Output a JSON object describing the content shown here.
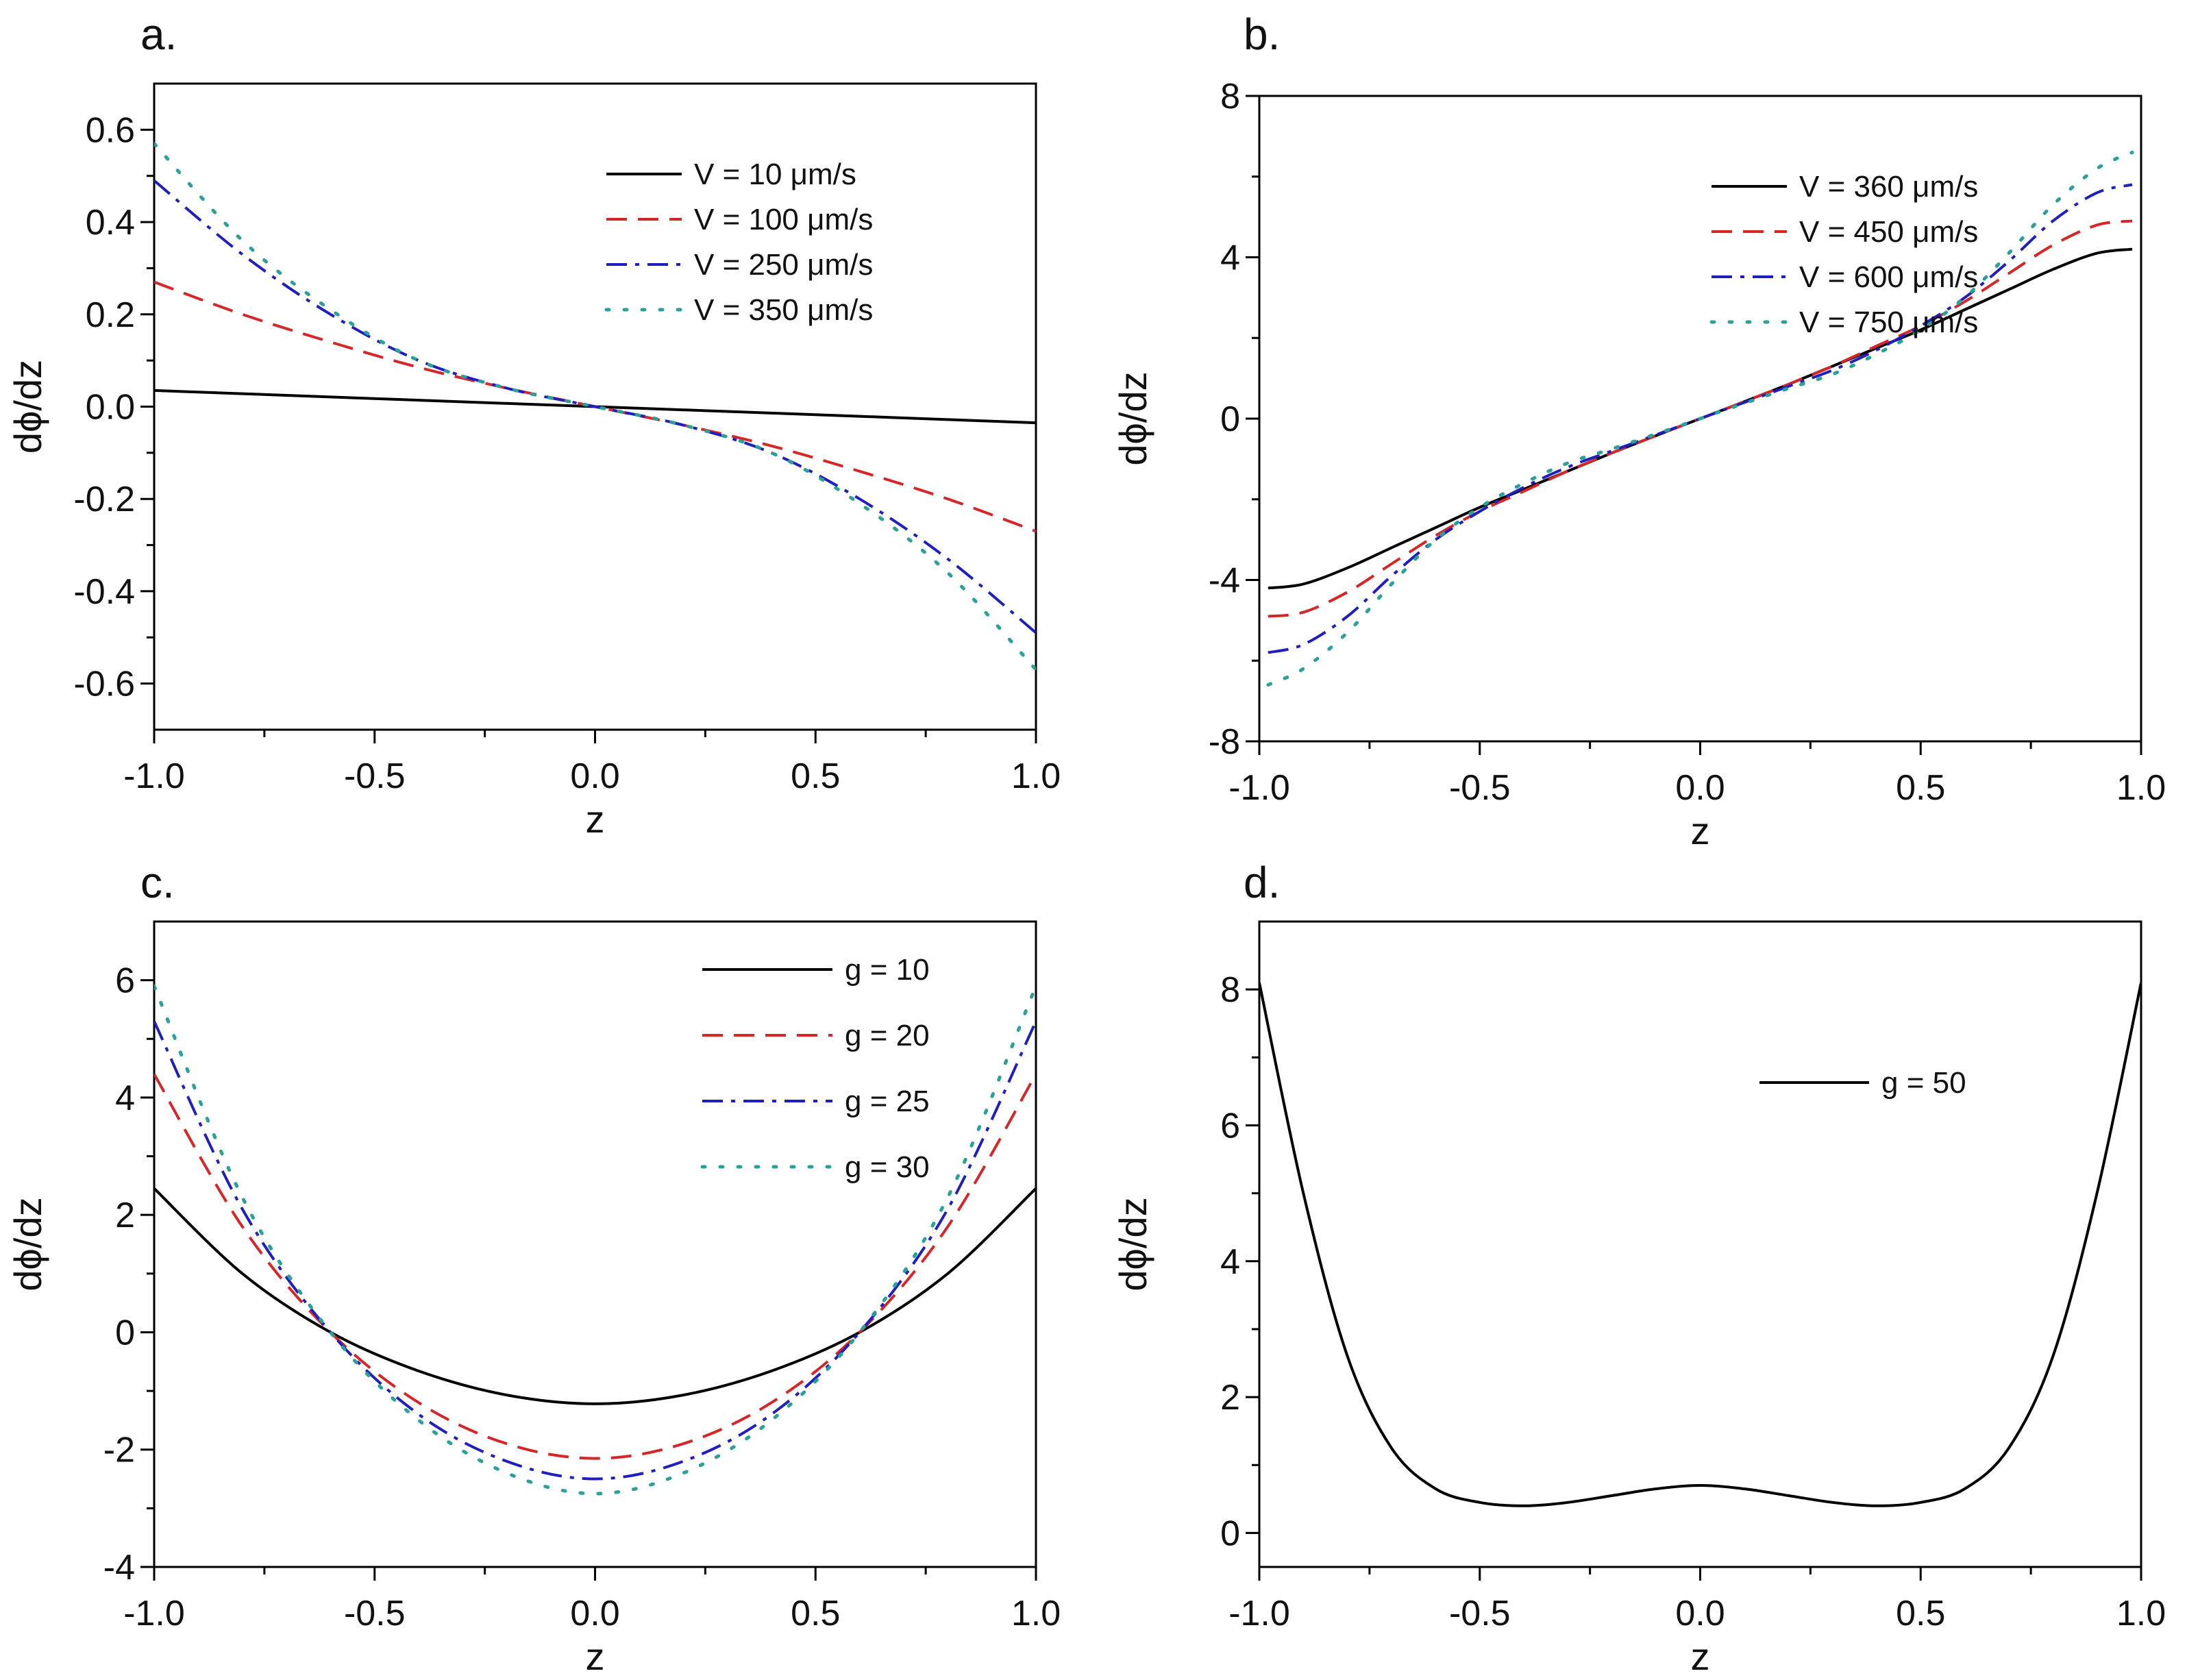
{
  "chart_data": [
    {
      "panel_label": "a.",
      "type": "line",
      "xlabel": "z",
      "ylabel": "dϕ/dz",
      "xlim": [
        -1.0,
        1.0
      ],
      "ylim": [
        -0.7,
        0.7
      ],
      "xticks": [
        "-1.0",
        "-0.5",
        "0.0",
        "0.5",
        "1.0"
      ],
      "yticks": [
        "-0.6",
        "-0.4",
        "-0.2",
        "0.0",
        "0.2",
        "0.4",
        "0.6"
      ],
      "grid": false,
      "legend_position": "upper-right",
      "x": [
        -1.0,
        -0.8,
        -0.6,
        -0.4,
        -0.2,
        0.0,
        0.2,
        0.4,
        0.6,
        0.8,
        1.0
      ],
      "series": [
        {
          "name": "V = 10 μm/s",
          "color": "#000000",
          "style": "solid",
          "values": [
            0.035,
            0.028,
            0.021,
            0.014,
            0.007,
            0.0,
            -0.007,
            -0.014,
            -0.021,
            -0.028,
            -0.035
          ]
        },
        {
          "name": "V = 100 μm/s",
          "color": "#d62728",
          "style": "dashed",
          "values": [
            0.27,
            0.2,
            0.14,
            0.085,
            0.04,
            0.0,
            -0.04,
            -0.085,
            -0.14,
            -0.2,
            -0.27
          ]
        },
        {
          "name": "V = 250 μm/s",
          "color": "#1f1fbf",
          "style": "dashdot",
          "values": [
            0.49,
            0.33,
            0.2,
            0.1,
            0.04,
            0.0,
            -0.04,
            -0.1,
            -0.2,
            -0.33,
            -0.49
          ]
        },
        {
          "name": "V = 350 μm/s",
          "color": "#2aa198",
          "style": "dotted",
          "values": [
            0.57,
            0.36,
            0.21,
            0.1,
            0.04,
            0.0,
            -0.04,
            -0.1,
            -0.21,
            -0.36,
            -0.57
          ]
        }
      ]
    },
    {
      "panel_label": "b.",
      "type": "line",
      "xlabel": "z",
      "ylabel": "dϕ/dz",
      "xlim": [
        -1.0,
        1.0
      ],
      "ylim": [
        -8,
        8
      ],
      "xticks": [
        "-1.0",
        "-0.5",
        "0.0",
        "0.5",
        "1.0"
      ],
      "yticks": [
        "-8",
        "-4",
        "0",
        "4",
        "8"
      ],
      "grid": false,
      "legend_position": "upper-right",
      "x": [
        -0.98,
        -0.9,
        -0.8,
        -0.7,
        -0.6,
        -0.5,
        -0.4,
        -0.3,
        -0.2,
        -0.1,
        0.0,
        0.1,
        0.2,
        0.3,
        0.4,
        0.5,
        0.6,
        0.7,
        0.8,
        0.9,
        0.98
      ],
      "series": [
        {
          "name": "V = 360 μm/s",
          "color": "#000000",
          "style": "solid",
          "values": [
            -4.2,
            -4.1,
            -3.7,
            -3.2,
            -2.7,
            -2.2,
            -1.75,
            -1.3,
            -0.85,
            -0.42,
            0.0,
            0.42,
            0.85,
            1.3,
            1.75,
            2.2,
            2.7,
            3.2,
            3.7,
            4.1,
            4.2
          ]
        },
        {
          "name": "V = 450 μm/s",
          "color": "#d62728",
          "style": "dashed",
          "values": [
            -4.9,
            -4.8,
            -4.3,
            -3.6,
            -2.9,
            -2.3,
            -1.8,
            -1.3,
            -0.85,
            -0.42,
            0.0,
            0.42,
            0.85,
            1.3,
            1.8,
            2.3,
            2.9,
            3.6,
            4.3,
            4.8,
            4.9
          ]
        },
        {
          "name": "V = 600 μm/s",
          "color": "#1f1fbf",
          "style": "dashdot",
          "values": [
            -5.8,
            -5.6,
            -4.9,
            -3.9,
            -3.0,
            -2.3,
            -1.7,
            -1.2,
            -0.8,
            -0.4,
            0.0,
            0.4,
            0.8,
            1.2,
            1.7,
            2.3,
            3.0,
            3.9,
            4.9,
            5.6,
            5.8
          ]
        },
        {
          "name": "V = 750 μm/s",
          "color": "#2aa198",
          "style": "dotted",
          "values": [
            -6.6,
            -6.2,
            -5.3,
            -4.1,
            -3.0,
            -2.2,
            -1.6,
            -1.1,
            -0.75,
            -0.38,
            0.0,
            0.38,
            0.75,
            1.1,
            1.6,
            2.2,
            3.0,
            4.1,
            5.3,
            6.2,
            6.6
          ]
        }
      ]
    },
    {
      "panel_label": "c.",
      "type": "line",
      "xlabel": "z",
      "ylabel": "dϕ/dz",
      "xlim": [
        -1.0,
        1.0
      ],
      "ylim": [
        -4,
        7
      ],
      "xticks": [
        "-1.0",
        "-0.5",
        "0.0",
        "0.5",
        "1.0"
      ],
      "yticks": [
        "-4",
        "-2",
        "0",
        "2",
        "4",
        "6"
      ],
      "grid": false,
      "legend_position": "upper-right",
      "x": [
        -1.0,
        -0.8,
        -0.6,
        -0.4,
        -0.2,
        0.0,
        0.2,
        0.4,
        0.6,
        0.8,
        1.0
      ],
      "series": [
        {
          "name": "g = 10",
          "color": "#000000",
          "style": "solid",
          "values": [
            2.45,
            1.0,
            0.0,
            -0.66,
            -1.07,
            -1.22,
            -1.07,
            -0.66,
            0.0,
            1.0,
            2.45
          ]
        },
        {
          "name": "g = 20",
          "color": "#d62728",
          "style": "dashed",
          "values": [
            4.4,
            1.8,
            0.0,
            -1.2,
            -1.9,
            -2.15,
            -1.9,
            -1.2,
            0.0,
            1.8,
            4.4
          ]
        },
        {
          "name": "g = 25",
          "color": "#1f1fbf",
          "style": "dashdot",
          "values": [
            5.3,
            2.1,
            0.0,
            -1.4,
            -2.2,
            -2.5,
            -2.2,
            -1.4,
            0.0,
            2.1,
            5.3
          ]
        },
        {
          "name": "g = 30",
          "color": "#2aa198",
          "style": "dotted",
          "values": [
            5.9,
            2.3,
            0.0,
            -1.5,
            -2.4,
            -2.75,
            -2.4,
            -1.5,
            0.0,
            2.3,
            5.9
          ]
        }
      ]
    },
    {
      "panel_label": "d.",
      "type": "line",
      "xlabel": "z",
      "ylabel": "dϕ/dz",
      "xlim": [
        -1.0,
        1.0
      ],
      "ylim": [
        -0.5,
        9
      ],
      "xticks": [
        "-1.0",
        "-0.5",
        "0.0",
        "0.5",
        "1.0"
      ],
      "yticks": [
        "0",
        "2",
        "4",
        "6",
        "8"
      ],
      "grid": false,
      "legend_position": "upper-right",
      "x": [
        -1.0,
        -0.9,
        -0.8,
        -0.7,
        -0.6,
        -0.5,
        -0.4,
        -0.3,
        -0.2,
        -0.1,
        0.0,
        0.1,
        0.2,
        0.3,
        0.4,
        0.5,
        0.6,
        0.7,
        0.8,
        0.9,
        1.0
      ],
      "series": [
        {
          "name": "g = 50",
          "color": "#000000",
          "style": "solid",
          "values": [
            8.1,
            5.0,
            2.6,
            1.25,
            0.65,
            0.45,
            0.4,
            0.45,
            0.55,
            0.65,
            0.7,
            0.65,
            0.55,
            0.45,
            0.4,
            0.45,
            0.65,
            1.25,
            2.6,
            5.0,
            8.1
          ]
        }
      ]
    }
  ]
}
